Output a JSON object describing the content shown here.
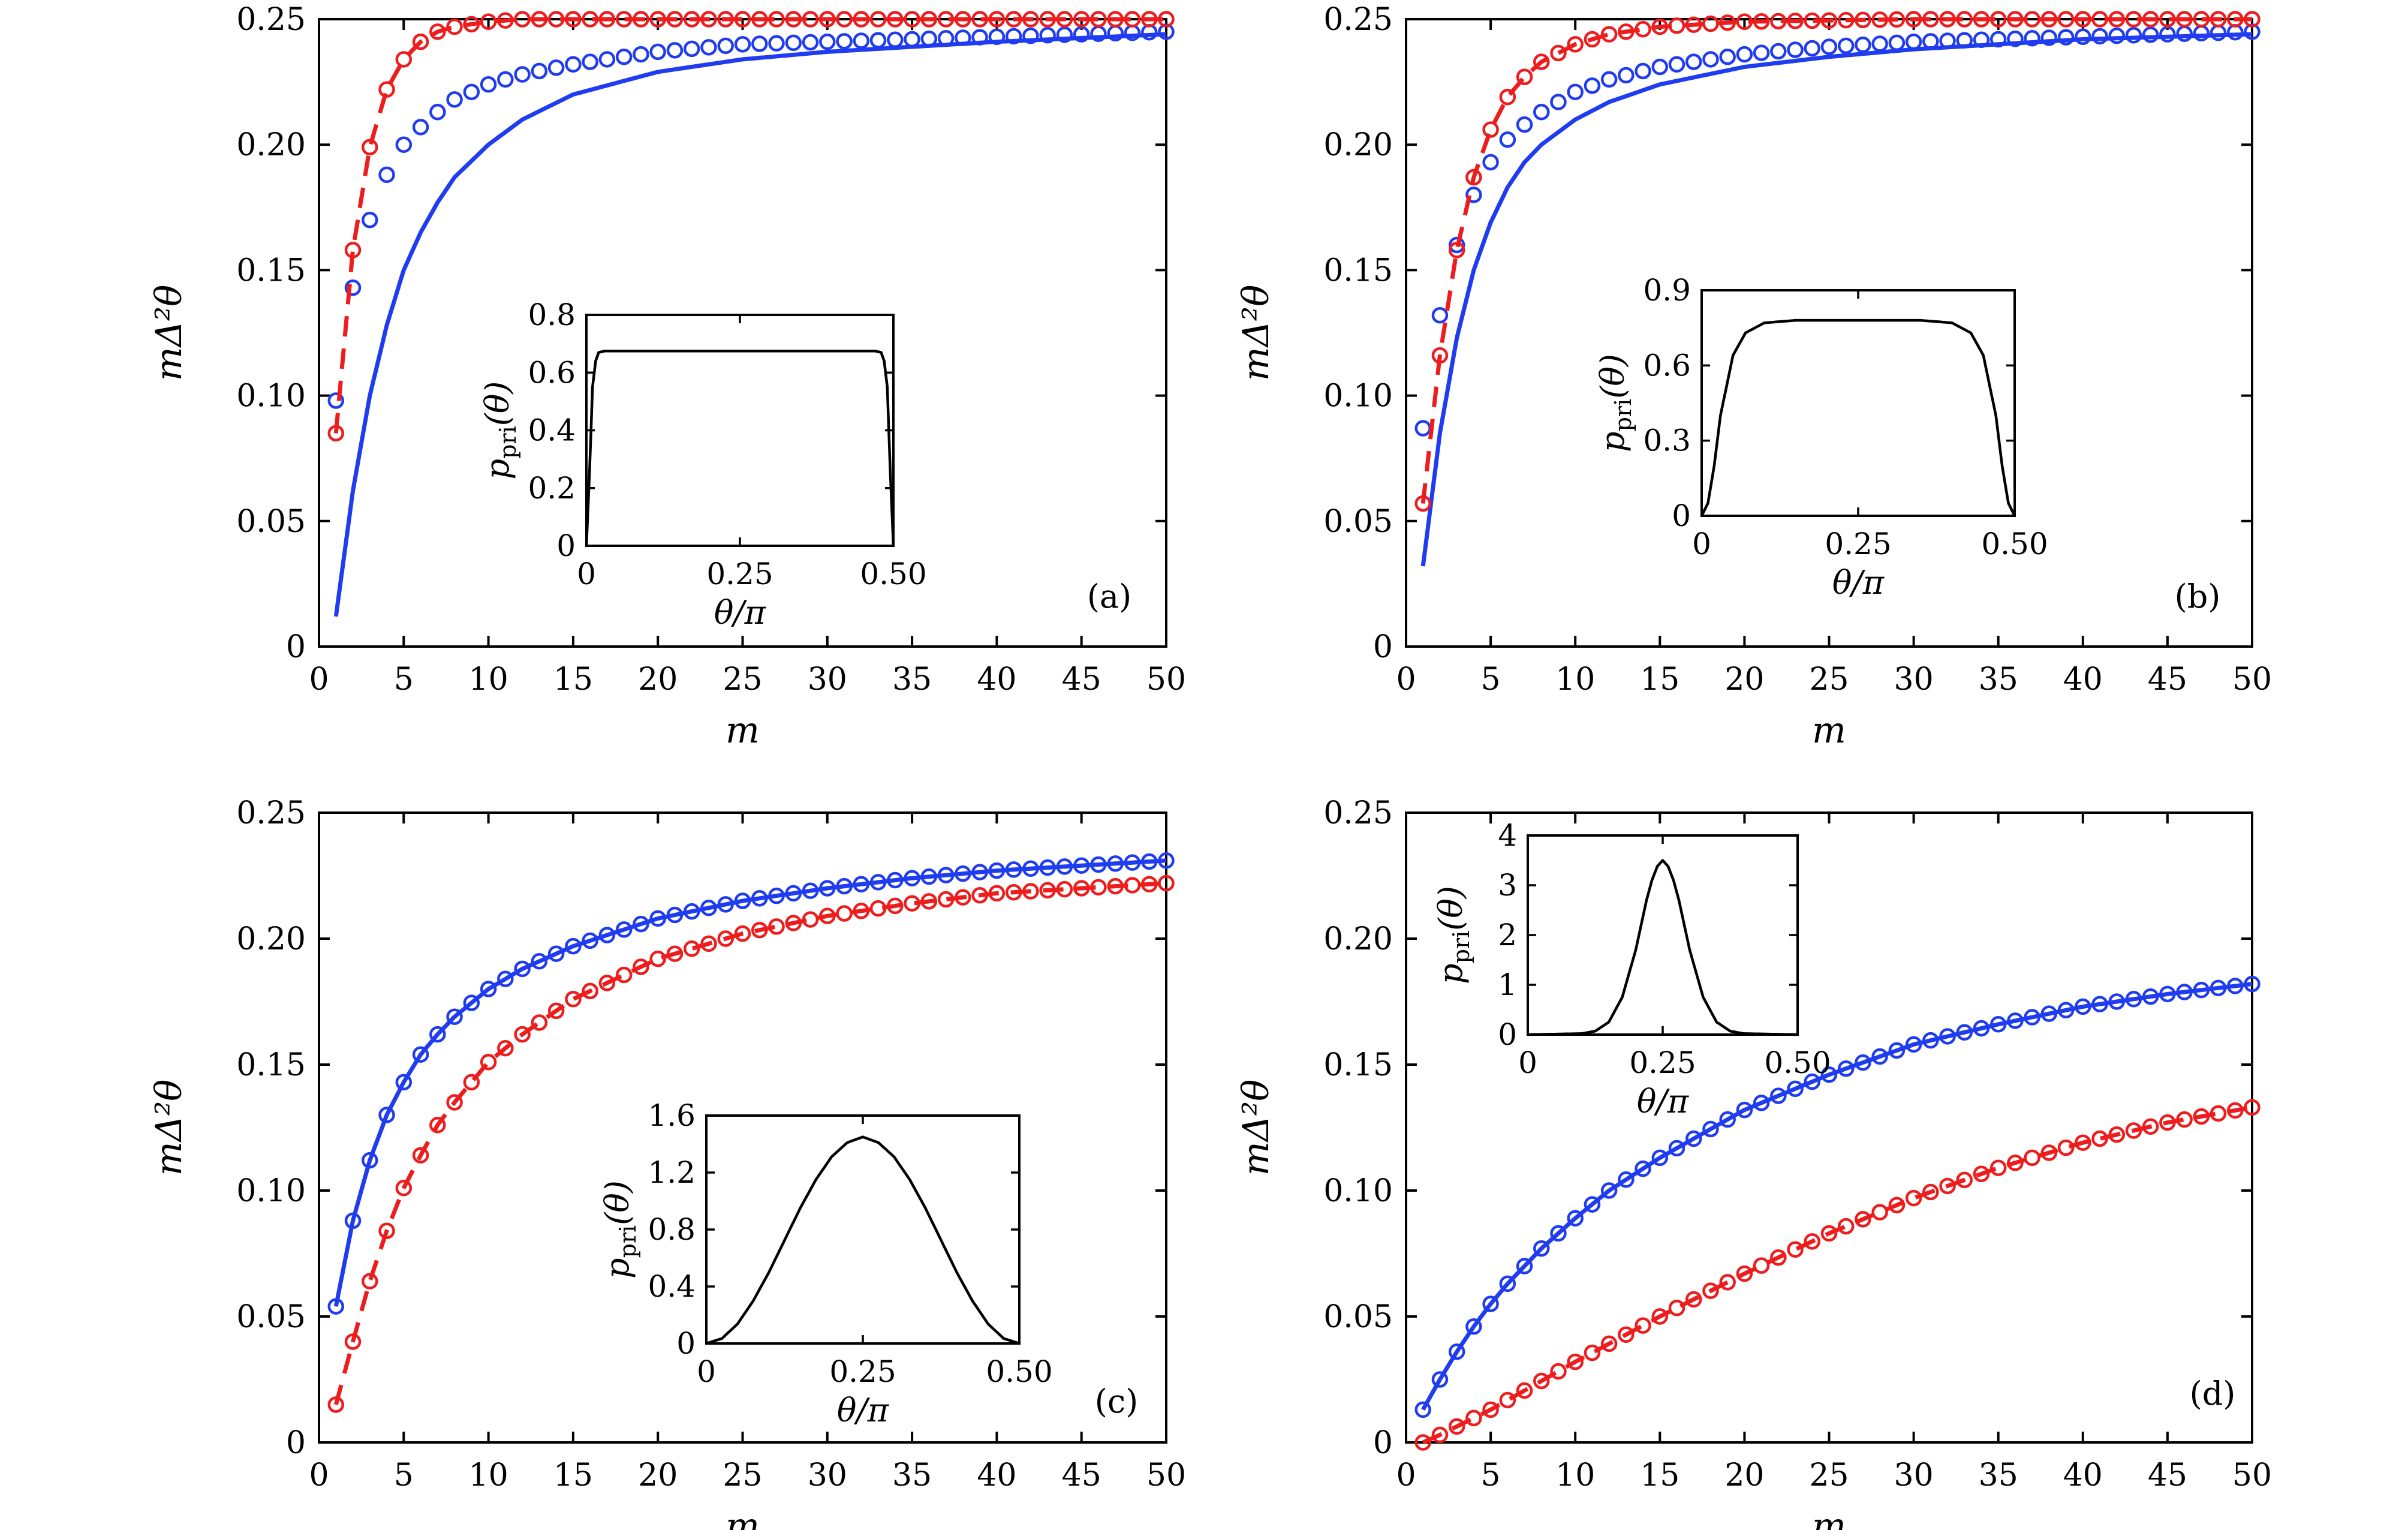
{
  "colors": {
    "blue": "#1f3cf0",
    "red": "#ee1c1c",
    "black": "#000000"
  },
  "chart_data": [
    {
      "panel": "(a)",
      "type": "line",
      "xlabel": "m",
      "ylabel": "mΔ²θ",
      "xlim": [
        0,
        50
      ],
      "ylim": [
        0,
        0.25
      ],
      "xticks": [
        "0",
        "5",
        "10",
        "15",
        "20",
        "25",
        "30",
        "35",
        "40",
        "45",
        "50"
      ],
      "yticks": [
        "0",
        "0.05",
        "0.10",
        "0.15",
        "0.20",
        "0.25"
      ],
      "series": [
        {
          "color": "blue",
          "style": "solid",
          "x": [
            1,
            2,
            3,
            4,
            5,
            6,
            7,
            8,
            10,
            12,
            15,
            20,
            25,
            30,
            40,
            50
          ],
          "y": [
            0.012,
            0.062,
            0.1,
            0.128,
            0.15,
            0.165,
            0.177,
            0.187,
            0.2,
            0.21,
            0.22,
            0.229,
            0.234,
            0.237,
            0.241,
            0.244
          ]
        },
        {
          "color": "blue",
          "style": "circles",
          "x": [
            1,
            2,
            3,
            4,
            5,
            6,
            7,
            8,
            10,
            12,
            15,
            20,
            25,
            30,
            40,
            50
          ],
          "y": [
            0.098,
            0.143,
            0.17,
            0.188,
            0.2,
            0.207,
            0.213,
            0.218,
            0.224,
            0.228,
            0.232,
            0.237,
            0.24,
            0.241,
            0.243,
            0.245
          ]
        },
        {
          "color": "red",
          "style": "dashed",
          "x": [
            1,
            2,
            3,
            4,
            5,
            6,
            7,
            8,
            10,
            12,
            15,
            20,
            30,
            50
          ],
          "y": [
            0.085,
            0.158,
            0.199,
            0.222,
            0.234,
            0.241,
            0.245,
            0.247,
            0.249,
            0.25,
            0.25,
            0.25,
            0.25,
            0.25
          ]
        },
        {
          "color": "red",
          "style": "circles",
          "x": [
            1,
            2,
            3,
            4,
            5,
            6,
            7,
            8,
            10,
            12,
            15,
            20,
            30,
            50
          ],
          "y": [
            0.085,
            0.158,
            0.199,
            0.222,
            0.234,
            0.241,
            0.245,
            0.247,
            0.249,
            0.25,
            0.25,
            0.25,
            0.25,
            0.25
          ]
        }
      ],
      "inset": {
        "xlabel": "θ/π",
        "ylabel": "p_pri(θ)",
        "xlim": [
          0,
          0.5
        ],
        "ylim": [
          0,
          0.8
        ],
        "xticks": [
          "0",
          "0.25",
          "0.50"
        ],
        "yticks": [
          "0",
          "0.2",
          "0.4",
          "0.6",
          "0.8"
        ],
        "x": [
          0,
          0.005,
          0.01,
          0.015,
          0.02,
          0.03,
          0.05,
          0.25,
          0.45,
          0.47,
          0.48,
          0.485,
          0.49,
          0.495,
          0.5
        ],
        "y": [
          0,
          0.25,
          0.55,
          0.64,
          0.67,
          0.675,
          0.675,
          0.675,
          0.675,
          0.675,
          0.67,
          0.64,
          0.55,
          0.25,
          0
        ]
      }
    },
    {
      "panel": "(b)",
      "type": "line",
      "xlabel": "m",
      "ylabel": "mΔ²θ",
      "xlim": [
        0,
        50
      ],
      "ylim": [
        0,
        0.25
      ],
      "xticks": [
        "0",
        "5",
        "10",
        "15",
        "20",
        "25",
        "30",
        "35",
        "40",
        "45",
        "50"
      ],
      "yticks": [
        "0",
        "0.05",
        "0.10",
        "0.15",
        "0.20",
        "0.25"
      ],
      "series": [
        {
          "color": "blue",
          "style": "solid",
          "x": [
            1,
            2,
            3,
            4,
            5,
            6,
            7,
            8,
            10,
            12,
            15,
            20,
            25,
            30,
            40,
            50
          ],
          "y": [
            0.032,
            0.085,
            0.123,
            0.15,
            0.169,
            0.183,
            0.193,
            0.2,
            0.21,
            0.217,
            0.224,
            0.231,
            0.235,
            0.238,
            0.242,
            0.244
          ]
        },
        {
          "color": "blue",
          "style": "circles",
          "x": [
            1,
            2,
            3,
            4,
            5,
            6,
            7,
            8,
            10,
            12,
            15,
            20,
            25,
            30,
            40,
            50
          ],
          "y": [
            0.087,
            0.132,
            0.16,
            0.18,
            0.193,
            0.202,
            0.208,
            0.213,
            0.221,
            0.226,
            0.231,
            0.236,
            0.239,
            0.241,
            0.243,
            0.245
          ]
        },
        {
          "color": "red",
          "style": "dashed",
          "x": [
            1,
            2,
            3,
            4,
            5,
            6,
            7,
            8,
            10,
            12,
            15,
            20,
            30,
            50
          ],
          "y": [
            0.057,
            0.116,
            0.158,
            0.187,
            0.206,
            0.219,
            0.227,
            0.233,
            0.24,
            0.244,
            0.247,
            0.249,
            0.25,
            0.25
          ]
        },
        {
          "color": "red",
          "style": "circles",
          "x": [
            1,
            2,
            3,
            4,
            5,
            6,
            7,
            8,
            10,
            12,
            15,
            20,
            30,
            50
          ],
          "y": [
            0.057,
            0.116,
            0.158,
            0.187,
            0.206,
            0.219,
            0.227,
            0.233,
            0.24,
            0.244,
            0.247,
            0.249,
            0.25,
            0.25
          ]
        }
      ],
      "inset": {
        "xlabel": "θ/π",
        "ylabel": "p_pri(θ)",
        "xlim": [
          0,
          0.5
        ],
        "ylim": [
          0,
          0.9
        ],
        "xticks": [
          "0",
          "0.25",
          "0.50"
        ],
        "yticks": [
          "0",
          "0.3",
          "0.6",
          "0.9"
        ],
        "x": [
          0,
          0.01,
          0.02,
          0.03,
          0.05,
          0.07,
          0.1,
          0.15,
          0.25,
          0.35,
          0.4,
          0.43,
          0.45,
          0.47,
          0.48,
          0.49,
          0.5
        ],
        "y": [
          0,
          0.05,
          0.2,
          0.4,
          0.64,
          0.73,
          0.77,
          0.78,
          0.78,
          0.78,
          0.77,
          0.73,
          0.64,
          0.4,
          0.2,
          0.05,
          0
        ]
      }
    },
    {
      "panel": "(c)",
      "type": "line",
      "xlabel": "m",
      "ylabel": "mΔ²θ",
      "xlim": [
        0,
        50
      ],
      "ylim": [
        0,
        0.25
      ],
      "xticks": [
        "0",
        "5",
        "10",
        "15",
        "20",
        "25",
        "30",
        "35",
        "40",
        "45",
        "50"
      ],
      "yticks": [
        "0",
        "0.05",
        "0.10",
        "0.15",
        "0.20",
        "0.25"
      ],
      "series": [
        {
          "color": "blue",
          "style": "solid",
          "x": [
            1,
            2,
            3,
            4,
            5,
            6,
            7,
            8,
            10,
            12,
            15,
            20,
            25,
            30,
            35,
            40,
            45,
            50
          ],
          "y": [
            0.054,
            0.088,
            0.112,
            0.13,
            0.143,
            0.154,
            0.162,
            0.169,
            0.18,
            0.188,
            0.197,
            0.208,
            0.215,
            0.22,
            0.224,
            0.227,
            0.229,
            0.231
          ]
        },
        {
          "color": "blue",
          "style": "circles",
          "x": [
            1,
            2,
            3,
            4,
            5,
            6,
            7,
            8,
            10,
            12,
            15,
            20,
            25,
            30,
            35,
            40,
            45,
            50
          ],
          "y": [
            0.054,
            0.088,
            0.112,
            0.13,
            0.143,
            0.154,
            0.162,
            0.169,
            0.18,
            0.188,
            0.197,
            0.208,
            0.215,
            0.22,
            0.224,
            0.227,
            0.229,
            0.231
          ]
        },
        {
          "color": "red",
          "style": "dashed",
          "x": [
            1,
            2,
            3,
            4,
            5,
            6,
            7,
            8,
            10,
            12,
            15,
            20,
            25,
            30,
            35,
            40,
            45,
            50
          ],
          "y": [
            0.015,
            0.04,
            0.064,
            0.084,
            0.101,
            0.114,
            0.126,
            0.135,
            0.151,
            0.162,
            0.176,
            0.192,
            0.202,
            0.209,
            0.214,
            0.218,
            0.22,
            0.222
          ]
        },
        {
          "color": "red",
          "style": "circles",
          "x": [
            1,
            2,
            3,
            4,
            5,
            6,
            7,
            8,
            10,
            12,
            15,
            20,
            25,
            30,
            35,
            40,
            45,
            50
          ],
          "y": [
            0.015,
            0.04,
            0.064,
            0.084,
            0.101,
            0.114,
            0.126,
            0.135,
            0.151,
            0.162,
            0.176,
            0.192,
            0.202,
            0.209,
            0.214,
            0.218,
            0.22,
            0.222
          ]
        }
      ],
      "inset": {
        "xlabel": "θ/π",
        "ylabel": "p_pri(θ)",
        "xlim": [
          0,
          0.5
        ],
        "ylim": [
          0,
          1.6
        ],
        "xticks": [
          "0",
          "0.25",
          "0.50"
        ],
        "yticks": [
          "0",
          "0.4",
          "0.8",
          "1.2",
          "1.6"
        ],
        "x": [
          0,
          0.025,
          0.05,
          0.075,
          0.1,
          0.125,
          0.15,
          0.175,
          0.2,
          0.225,
          0.25,
          0.275,
          0.3,
          0.325,
          0.35,
          0.375,
          0.4,
          0.425,
          0.45,
          0.475,
          0.5
        ],
        "y": [
          0,
          0.035,
          0.138,
          0.3,
          0.5,
          0.725,
          0.95,
          1.15,
          1.31,
          1.41,
          1.45,
          1.41,
          1.31,
          1.15,
          0.95,
          0.725,
          0.5,
          0.3,
          0.138,
          0.035,
          0
        ]
      }
    },
    {
      "panel": "(d)",
      "type": "line",
      "xlabel": "m",
      "ylabel": "mΔ²θ",
      "xlim": [
        0,
        50
      ],
      "ylim": [
        0,
        0.25
      ],
      "xticks": [
        "0",
        "5",
        "10",
        "15",
        "20",
        "25",
        "30",
        "35",
        "40",
        "45",
        "50"
      ],
      "yticks": [
        "0",
        "0.05",
        "0.10",
        "0.15",
        "0.20",
        "0.25"
      ],
      "series": [
        {
          "color": "blue",
          "style": "solid",
          "x": [
            1,
            2,
            3,
            4,
            5,
            6,
            8,
            10,
            12,
            15,
            20,
            25,
            30,
            35,
            40,
            45,
            50
          ],
          "y": [
            0.013,
            0.025,
            0.036,
            0.046,
            0.055,
            0.063,
            0.077,
            0.089,
            0.1,
            0.113,
            0.132,
            0.146,
            0.158,
            0.166,
            0.173,
            0.178,
            0.182
          ]
        },
        {
          "color": "blue",
          "style": "circles",
          "x": [
            1,
            2,
            3,
            4,
            5,
            6,
            8,
            10,
            12,
            15,
            20,
            25,
            30,
            35,
            40,
            45,
            50
          ],
          "y": [
            0.013,
            0.025,
            0.036,
            0.046,
            0.055,
            0.063,
            0.077,
            0.089,
            0.1,
            0.113,
            0.132,
            0.146,
            0.158,
            0.166,
            0.173,
            0.178,
            0.182
          ]
        },
        {
          "color": "red",
          "style": "dashed",
          "x": [
            1,
            2,
            5,
            10,
            15,
            20,
            25,
            30,
            35,
            40,
            45,
            50
          ],
          "y": [
            0.0,
            0.003,
            0.013,
            0.032,
            0.05,
            0.067,
            0.083,
            0.097,
            0.109,
            0.119,
            0.127,
            0.133
          ]
        },
        {
          "color": "red",
          "style": "circles",
          "x": [
            1,
            2,
            5,
            10,
            15,
            20,
            25,
            30,
            35,
            40,
            45,
            50
          ],
          "y": [
            0.0,
            0.003,
            0.013,
            0.032,
            0.05,
            0.067,
            0.083,
            0.097,
            0.109,
            0.119,
            0.127,
            0.133
          ]
        }
      ],
      "inset": {
        "xlabel": "θ/π",
        "ylabel": "p_pri(θ)",
        "xlim": [
          0,
          0.5
        ],
        "ylim": [
          0,
          4
        ],
        "xticks": [
          "0",
          "0.25",
          "0.50"
        ],
        "yticks": [
          "0",
          "1",
          "2",
          "3",
          "4"
        ],
        "x": [
          0,
          0.1,
          0.125,
          0.15,
          0.175,
          0.2,
          0.21,
          0.22,
          0.23,
          0.24,
          0.25,
          0.26,
          0.27,
          0.28,
          0.29,
          0.3,
          0.325,
          0.35,
          0.375,
          0.4,
          0.5
        ],
        "y": [
          0,
          0.02,
          0.07,
          0.25,
          0.75,
          1.7,
          2.2,
          2.7,
          3.1,
          3.38,
          3.5,
          3.38,
          3.1,
          2.7,
          2.2,
          1.7,
          0.75,
          0.25,
          0.07,
          0.02,
          0
        ]
      }
    }
  ]
}
